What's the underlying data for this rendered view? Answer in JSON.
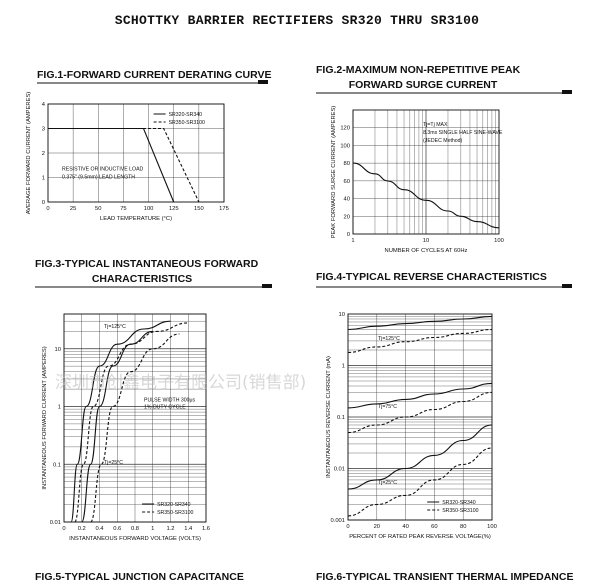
{
  "page": {
    "title": "SCHOTTKY BARRIER RECTIFIERS SR320 THRU SR3100"
  },
  "watermark": "深圳市创鑫电子有限公司(销售部)",
  "figures": {
    "fig1": {
      "title": "FIG.1-FORWARD CURRENT DERATING CURVE"
    },
    "fig2": {
      "title_line1": "FIG.2-MAXIMUM NON-REPETITIVE PEAK",
      "title_line2": "FORWARD SURGE CURRENT"
    },
    "fig3": {
      "title_line1": "FIG.3-TYPICAL INSTANTANEOUS FORWARD",
      "title_line2": "CHARACTERISTICS"
    },
    "fig4": {
      "title": "FIG.4-TYPICAL REVERSE CHARACTERISTICS"
    },
    "fig5": {
      "title": "FIG.5-TYPICAL JUNCTION CAPACITANCE"
    },
    "fig6": {
      "title": "FIG.6-TYPICAL TRANSIENT THERMAL IMPEDANCE"
    }
  },
  "chart_data": [
    {
      "id": "fig1",
      "type": "line",
      "xlabel": "LEAD TEMPERATURE (°C)",
      "ylabel": "AVERAGE FORWARD CURRENT (AMPERES)",
      "xlim": [
        0,
        175
      ],
      "ylim": [
        0,
        4
      ],
      "xticks": [
        0,
        25,
        50,
        75,
        100,
        125,
        150,
        175
      ],
      "yticks": [
        0,
        1,
        2,
        3,
        4
      ],
      "annotations": [
        "RESISTIVE OR INDUCTIVE LOAD",
        "0.375\" (9.5mm) LEAD LENGTH"
      ],
      "legend": "top-right",
      "series": [
        {
          "name": "SR320-SR340",
          "style": "solid",
          "x": [
            0,
            95,
            125
          ],
          "y": [
            3,
            3,
            0
          ]
        },
        {
          "name": "SR350-SR3100",
          "style": "dashed",
          "x": [
            0,
            115,
            150
          ],
          "y": [
            3,
            3,
            0
          ]
        }
      ]
    },
    {
      "id": "fig2",
      "type": "line",
      "xlabel": "NUMBER OF CYCLES AT 60Hz",
      "ylabel": "PEAK FORWARD SURGE CURRENT (AMPERES)",
      "xscale": "log",
      "xlim": [
        1,
        100
      ],
      "ylim": [
        0,
        140
      ],
      "xticks": [
        1,
        10,
        100
      ],
      "yticks": [
        0,
        20,
        40,
        60,
        80,
        100,
        120
      ],
      "annotations": [
        "Tj=Tj MAX",
        "8.3ms SINGLE HALF SINE-WAVE",
        "(JEDEC Method)"
      ],
      "series": [
        {
          "style": "solid",
          "x": [
            1,
            2,
            3,
            5,
            10,
            20,
            30,
            50,
            100
          ],
          "y": [
            80,
            68,
            60,
            50,
            38,
            26,
            20,
            14,
            7
          ]
        }
      ]
    },
    {
      "id": "fig3",
      "type": "line",
      "xlabel": "INSTANTANEOUS FORWARD VOLTAGE (VOLTS)",
      "ylabel": "INSTANTANEOUS FORWARD CURRENT (AMPERES)",
      "yscale": "log",
      "xlim": [
        0,
        1.6
      ],
      "ylim": [
        0.01,
        40
      ],
      "xticks": [
        0,
        0.2,
        0.4,
        0.6,
        0.8,
        1.0,
        1.2,
        1.4,
        1.6
      ],
      "yticks": [
        0.01,
        0.1,
        1,
        10
      ],
      "annotations": [
        "Tj=125°C",
        "Tj=25°C",
        "PULSE WIDTH 300μs",
        "1% DUTY CYCLE"
      ],
      "legend": "bottom-right",
      "series": [
        {
          "name": "SR320-SR340",
          "condition": "Tj=125°C",
          "style": "solid",
          "x": [
            0.08,
            0.15,
            0.25,
            0.4,
            0.6,
            0.9,
            1.2
          ],
          "y": [
            0.01,
            0.1,
            1,
            5,
            12,
            22,
            30
          ]
        },
        {
          "name": "SR350-SR3100",
          "condition": "Tj=125°C",
          "style": "dashed",
          "x": [
            0.12,
            0.22,
            0.33,
            0.5,
            0.75,
            1.05,
            1.4
          ],
          "y": [
            0.01,
            0.1,
            1,
            5,
            12,
            20,
            28
          ]
        },
        {
          "name": "SR320-SR340",
          "condition": "Tj=25°C",
          "style": "solid",
          "x": [
            0.2,
            0.3,
            0.4,
            0.55,
            0.75,
            1.0
          ],
          "y": [
            0.01,
            0.1,
            1,
            5,
            12,
            20
          ]
        },
        {
          "name": "SR350-SR3100",
          "condition": "Tj=25°C",
          "style": "dashed",
          "x": [
            0.3,
            0.42,
            0.55,
            0.75,
            1.0,
            1.3
          ],
          "y": [
            0.01,
            0.1,
            1,
            4,
            10,
            18
          ]
        }
      ]
    },
    {
      "id": "fig4",
      "type": "line",
      "xlabel": "PERCENT OF RATED PEAK REVERSE VOLTAGE(%)",
      "ylabel": "INSTANTANEOUS REVERSE CURRENT (mA)",
      "yscale": "log",
      "xlim": [
        0,
        100
      ],
      "ylim": [
        0.001,
        10
      ],
      "xticks": [
        0,
        20,
        40,
        60,
        80,
        100
      ],
      "yticks": [
        0.001,
        0.01,
        0.1,
        1,
        10
      ],
      "annotations": [
        "Tj=125°C",
        "Tj=75°C",
        "Tj=25°C"
      ],
      "legend": "bottom-right",
      "series": [
        {
          "name": "SR320-SR340",
          "condition": "Tj=125°C",
          "style": "solid",
          "x": [
            0,
            20,
            40,
            60,
            80,
            100
          ],
          "y": [
            5,
            5.8,
            6.5,
            7.2,
            8,
            9
          ]
        },
        {
          "name": "SR350-SR3100",
          "condition": "Tj=125°C",
          "style": "dashed",
          "x": [
            0,
            20,
            40,
            60,
            80,
            100
          ],
          "y": [
            1.8,
            2.3,
            2.9,
            3.5,
            4.2,
            5
          ]
        },
        {
          "name": "SR320-SR340",
          "condition": "Tj=75°C",
          "style": "solid",
          "x": [
            0,
            20,
            40,
            60,
            80,
            100
          ],
          "y": [
            0.15,
            0.18,
            0.22,
            0.28,
            0.35,
            0.45
          ]
        },
        {
          "name": "SR350-SR3100",
          "condition": "Tj=75°C",
          "style": "dashed",
          "x": [
            0,
            20,
            40,
            60,
            80,
            100
          ],
          "y": [
            0.05,
            0.07,
            0.1,
            0.14,
            0.2,
            0.3
          ]
        },
        {
          "name": "SR320-SR340",
          "condition": "Tj=25°C",
          "style": "solid",
          "x": [
            0,
            20,
            40,
            60,
            80,
            100
          ],
          "y": [
            0.004,
            0.006,
            0.01,
            0.018,
            0.035,
            0.07
          ]
        },
        {
          "name": "SR350-SR3100",
          "condition": "Tj=25°C",
          "style": "dashed",
          "x": [
            0,
            20,
            40,
            60,
            80,
            100
          ],
          "y": [
            0.0012,
            0.002,
            0.003,
            0.006,
            0.012,
            0.025
          ]
        }
      ]
    }
  ]
}
